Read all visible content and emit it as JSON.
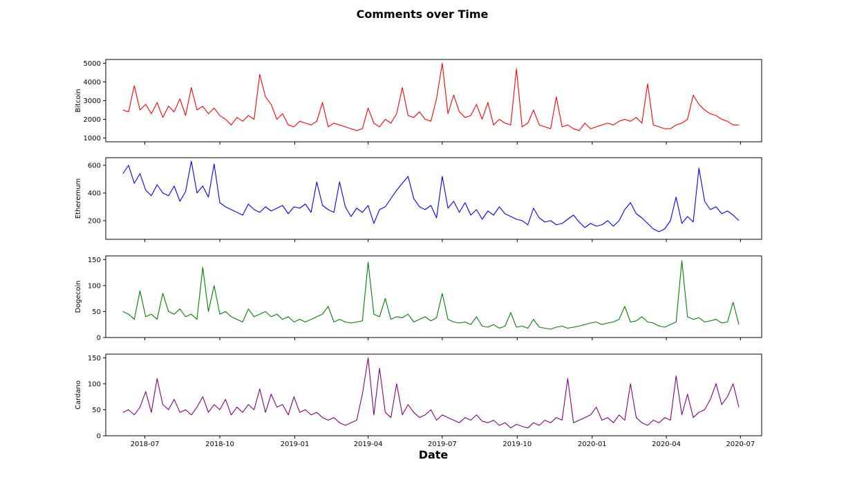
{
  "chart_data": {
    "type": "line",
    "title": "Comments over Time",
    "xlabel": "Date",
    "x_range": [
      "2018-05-14",
      "2020-07-27"
    ],
    "x_ticks": [
      "2018-07",
      "2018-10",
      "2019-01",
      "2019-04",
      "2019-07",
      "2019-10",
      "2020-01",
      "2020-04",
      "2020-07"
    ],
    "sampling": "one point per week from 2018-06-04 to 2020-06-29 (curves are denser daily lines in the original)",
    "grid": false,
    "panels": [
      {
        "ylabel": "Bitcoin",
        "color": "#ff0000",
        "ylim": [
          800,
          5200
        ],
        "yticks": [
          1000,
          2000,
          3000,
          4000,
          5000
        ],
        "x": [
          "2018-06-04",
          "2018-06-11",
          "2018-06-18",
          "2018-06-25",
          "2018-07-02",
          "2018-07-09",
          "2018-07-16",
          "2018-07-23",
          "2018-07-30",
          "2018-08-06",
          "2018-08-13",
          "2018-08-20",
          "2018-08-27",
          "2018-09-03",
          "2018-09-10",
          "2018-09-17",
          "2018-09-24",
          "2018-10-01",
          "2018-10-08",
          "2018-10-15",
          "2018-10-22",
          "2018-10-29",
          "2018-11-05",
          "2018-11-12",
          "2018-11-19",
          "2018-11-26",
          "2018-12-03",
          "2018-12-10",
          "2018-12-17",
          "2018-12-24",
          "2018-12-31",
          "2019-01-07",
          "2019-01-14",
          "2019-01-21",
          "2019-01-28",
          "2019-02-04",
          "2019-02-11",
          "2019-02-18",
          "2019-02-25",
          "2019-03-04",
          "2019-03-11",
          "2019-03-18",
          "2019-03-25",
          "2019-04-01",
          "2019-04-08",
          "2019-04-15",
          "2019-04-22",
          "2019-04-29",
          "2019-05-06",
          "2019-05-13",
          "2019-05-20",
          "2019-05-27",
          "2019-06-03",
          "2019-06-10",
          "2019-06-17",
          "2019-06-24",
          "2019-07-01",
          "2019-07-08",
          "2019-07-15",
          "2019-07-22",
          "2019-07-29",
          "2019-08-05",
          "2019-08-12",
          "2019-08-19",
          "2019-08-26",
          "2019-09-02",
          "2019-09-09",
          "2019-09-16",
          "2019-09-23",
          "2019-09-30",
          "2019-10-07",
          "2019-10-14",
          "2019-10-21",
          "2019-10-28",
          "2019-11-04",
          "2019-11-11",
          "2019-11-18",
          "2019-11-25",
          "2019-12-02",
          "2019-12-09",
          "2019-12-16",
          "2019-12-23",
          "2019-12-30",
          "2020-01-06",
          "2020-01-13",
          "2020-01-20",
          "2020-01-27",
          "2020-02-03",
          "2020-02-10",
          "2020-02-17",
          "2020-02-24",
          "2020-03-02",
          "2020-03-09",
          "2020-03-16",
          "2020-03-23",
          "2020-03-30",
          "2020-04-06",
          "2020-04-13",
          "2020-04-20",
          "2020-04-27",
          "2020-05-04",
          "2020-05-11",
          "2020-05-18",
          "2020-05-25",
          "2020-06-01",
          "2020-06-08",
          "2020-06-15",
          "2020-06-22",
          "2020-06-29"
        ],
        "values": [
          2500,
          2400,
          3800,
          2500,
          2800,
          2300,
          2900,
          2100,
          2700,
          2400,
          3100,
          2200,
          3700,
          2500,
          2700,
          2300,
          2600,
          2200,
          2000,
          1700,
          2100,
          1900,
          2200,
          2000,
          4400,
          3200,
          2800,
          2000,
          2300,
          1700,
          1600,
          1900,
          1800,
          1700,
          1900,
          2900,
          1600,
          1800,
          1700,
          1600,
          1500,
          1400,
          1500,
          2600,
          1800,
          1600,
          2000,
          1800,
          2300,
          3700,
          2200,
          2100,
          2400,
          2000,
          1900,
          3100,
          5000,
          2300,
          3300,
          2400,
          2100,
          2200,
          2800,
          2000,
          2900,
          1700,
          2000,
          1800,
          1700,
          4700,
          1600,
          1800,
          2500,
          1700,
          1600,
          1500,
          3200,
          1600,
          1700,
          1500,
          1400,
          1800,
          1500,
          1600,
          1700,
          1800,
          1700,
          1900,
          2000,
          1900,
          2100,
          1800,
          3900,
          1700,
          1600,
          1500,
          1500,
          1700,
          1800,
          2000,
          3300,
          2800,
          2500,
          2300,
          2200,
          2000,
          1900,
          1700,
          1700
        ]
      },
      {
        "ylabel": "Etheremum",
        "color": "#0000ff",
        "ylim": [
          65,
          655
        ],
        "yticks": [
          200,
          400,
          600
        ],
        "x": [
          "2018-06-04",
          "2018-06-11",
          "2018-06-18",
          "2018-06-25",
          "2018-07-02",
          "2018-07-09",
          "2018-07-16",
          "2018-07-23",
          "2018-07-30",
          "2018-08-06",
          "2018-08-13",
          "2018-08-20",
          "2018-08-27",
          "2018-09-03",
          "2018-09-10",
          "2018-09-17",
          "2018-09-24",
          "2018-10-01",
          "2018-10-08",
          "2018-10-15",
          "2018-10-22",
          "2018-10-29",
          "2018-11-05",
          "2018-11-12",
          "2018-11-19",
          "2018-11-26",
          "2018-12-03",
          "2018-12-10",
          "2018-12-17",
          "2018-12-24",
          "2018-12-31",
          "2019-01-07",
          "2019-01-14",
          "2019-01-21",
          "2019-01-28",
          "2019-02-04",
          "2019-02-11",
          "2019-02-18",
          "2019-02-25",
          "2019-03-04",
          "2019-03-11",
          "2019-03-18",
          "2019-03-25",
          "2019-04-01",
          "2019-04-08",
          "2019-04-15",
          "2019-04-22",
          "2019-04-29",
          "2019-05-06",
          "2019-05-13",
          "2019-05-20",
          "2019-05-27",
          "2019-06-03",
          "2019-06-10",
          "2019-06-17",
          "2019-06-24",
          "2019-07-01",
          "2019-07-08",
          "2019-07-15",
          "2019-07-22",
          "2019-07-29",
          "2019-08-05",
          "2019-08-12",
          "2019-08-19",
          "2019-08-26",
          "2019-09-02",
          "2019-09-09",
          "2019-09-16",
          "2019-09-23",
          "2019-09-30",
          "2019-10-07",
          "2019-10-14",
          "2019-10-21",
          "2019-10-28",
          "2019-11-04",
          "2019-11-11",
          "2019-11-18",
          "2019-11-25",
          "2019-12-02",
          "2019-12-09",
          "2019-12-16",
          "2019-12-23",
          "2019-12-30",
          "2020-01-06",
          "2020-01-13",
          "2020-01-20",
          "2020-01-27",
          "2020-02-03",
          "2020-02-10",
          "2020-02-17",
          "2020-02-24",
          "2020-03-02",
          "2020-03-09",
          "2020-03-16",
          "2020-03-23",
          "2020-03-30",
          "2020-04-06",
          "2020-04-13",
          "2020-04-20",
          "2020-04-27",
          "2020-05-04",
          "2020-05-11",
          "2020-05-18",
          "2020-05-25",
          "2020-06-01",
          "2020-06-08",
          "2020-06-15",
          "2020-06-22",
          "2020-06-29"
        ],
        "values": [
          540,
          600,
          470,
          540,
          420,
          380,
          460,
          400,
          380,
          450,
          340,
          410,
          630,
          400,
          450,
          370,
          610,
          330,
          300,
          280,
          260,
          240,
          320,
          280,
          260,
          300,
          270,
          290,
          310,
          250,
          300,
          290,
          320,
          260,
          480,
          310,
          280,
          260,
          480,
          300,
          230,
          290,
          260,
          310,
          180,
          280,
          300,
          360,
          420,
          470,
          520,
          360,
          300,
          280,
          310,
          220,
          520,
          290,
          340,
          260,
          330,
          240,
          280,
          210,
          270,
          240,
          300,
          250,
          230,
          210,
          200,
          170,
          290,
          220,
          190,
          200,
          170,
          180,
          210,
          240,
          190,
          150,
          180,
          160,
          170,
          200,
          160,
          200,
          280,
          330,
          250,
          220,
          180,
          140,
          120,
          140,
          200,
          370,
          180,
          230,
          190,
          580,
          340,
          280,
          300,
          250,
          270,
          240,
          200
        ]
      },
      {
        "ylabel": "Dogecoin",
        "color": "#008000",
        "ylim": [
          0,
          157
        ],
        "yticks": [
          0,
          50,
          100,
          150
        ],
        "x": [
          "2018-06-04",
          "2018-06-11",
          "2018-06-18",
          "2018-06-25",
          "2018-07-02",
          "2018-07-09",
          "2018-07-16",
          "2018-07-23",
          "2018-07-30",
          "2018-08-06",
          "2018-08-13",
          "2018-08-20",
          "2018-08-27",
          "2018-09-03",
          "2018-09-10",
          "2018-09-17",
          "2018-09-24",
          "2018-10-01",
          "2018-10-08",
          "2018-10-15",
          "2018-10-22",
          "2018-10-29",
          "2018-11-05",
          "2018-11-12",
          "2018-11-19",
          "2018-11-26",
          "2018-12-03",
          "2018-12-10",
          "2018-12-17",
          "2018-12-24",
          "2018-12-31",
          "2019-01-07",
          "2019-01-14",
          "2019-01-21",
          "2019-01-28",
          "2019-02-04",
          "2019-02-11",
          "2019-02-18",
          "2019-02-25",
          "2019-03-04",
          "2019-03-11",
          "2019-03-18",
          "2019-03-25",
          "2019-04-01",
          "2019-04-08",
          "2019-04-15",
          "2019-04-22",
          "2019-04-29",
          "2019-05-06",
          "2019-05-13",
          "2019-05-20",
          "2019-05-27",
          "2019-06-03",
          "2019-06-10",
          "2019-06-17",
          "2019-06-24",
          "2019-07-01",
          "2019-07-08",
          "2019-07-15",
          "2019-07-22",
          "2019-07-29",
          "2019-08-05",
          "2019-08-12",
          "2019-08-19",
          "2019-08-26",
          "2019-09-02",
          "2019-09-09",
          "2019-09-16",
          "2019-09-23",
          "2019-09-30",
          "2019-10-07",
          "2019-10-14",
          "2019-10-21",
          "2019-10-28",
          "2019-11-04",
          "2019-11-11",
          "2019-11-18",
          "2019-11-25",
          "2019-12-02",
          "2019-12-09",
          "2019-12-16",
          "2019-12-23",
          "2019-12-30",
          "2020-01-06",
          "2020-01-13",
          "2020-01-20",
          "2020-01-27",
          "2020-02-03",
          "2020-02-10",
          "2020-02-17",
          "2020-02-24",
          "2020-03-02",
          "2020-03-09",
          "2020-03-16",
          "2020-03-23",
          "2020-03-30",
          "2020-04-06",
          "2020-04-13",
          "2020-04-20",
          "2020-04-27",
          "2020-05-04",
          "2020-05-11",
          "2020-05-18",
          "2020-05-25",
          "2020-06-01",
          "2020-06-08",
          "2020-06-15",
          "2020-06-22",
          "2020-06-29"
        ],
        "values": [
          50,
          45,
          35,
          90,
          40,
          45,
          35,
          85,
          50,
          45,
          55,
          40,
          45,
          35,
          135,
          50,
          100,
          45,
          50,
          40,
          35,
          30,
          55,
          40,
          45,
          50,
          40,
          45,
          35,
          40,
          30,
          35,
          30,
          35,
          40,
          45,
          60,
          30,
          35,
          30,
          28,
          30,
          32,
          145,
          45,
          40,
          75,
          35,
          40,
          38,
          45,
          30,
          35,
          40,
          32,
          38,
          85,
          35,
          30,
          28,
          30,
          25,
          40,
          22,
          20,
          25,
          18,
          22,
          48,
          20,
          22,
          18,
          35,
          20,
          18,
          16,
          20,
          22,
          18,
          20,
          22,
          25,
          28,
          30,
          25,
          28,
          30,
          35,
          60,
          30,
          32,
          40,
          30,
          28,
          22,
          20,
          25,
          30,
          148,
          40,
          35,
          38,
          30,
          32,
          35,
          28,
          30,
          68,
          25
        ]
      },
      {
        "ylabel": "Cardano",
        "color": "#800080",
        "ylim": [
          0,
          157
        ],
        "yticks": [
          0,
          50,
          100,
          150
        ],
        "x": [
          "2018-06-04",
          "2018-06-11",
          "2018-06-18",
          "2018-06-25",
          "2018-07-02",
          "2018-07-09",
          "2018-07-16",
          "2018-07-23",
          "2018-07-30",
          "2018-08-06",
          "2018-08-13",
          "2018-08-20",
          "2018-08-27",
          "2018-09-03",
          "2018-09-10",
          "2018-09-17",
          "2018-09-24",
          "2018-10-01",
          "2018-10-08",
          "2018-10-15",
          "2018-10-22",
          "2018-10-29",
          "2018-11-05",
          "2018-11-12",
          "2018-11-19",
          "2018-11-26",
          "2018-12-03",
          "2018-12-10",
          "2018-12-17",
          "2018-12-24",
          "2018-12-31",
          "2019-01-07",
          "2019-01-14",
          "2019-01-21",
          "2019-01-28",
          "2019-02-04",
          "2019-02-11",
          "2019-02-18",
          "2019-02-25",
          "2019-03-04",
          "2019-03-11",
          "2019-03-18",
          "2019-03-25",
          "2019-04-01",
          "2019-04-08",
          "2019-04-15",
          "2019-04-22",
          "2019-04-29",
          "2019-05-06",
          "2019-05-13",
          "2019-05-20",
          "2019-05-27",
          "2019-06-03",
          "2019-06-10",
          "2019-06-17",
          "2019-06-24",
          "2019-07-01",
          "2019-07-08",
          "2019-07-15",
          "2019-07-22",
          "2019-07-29",
          "2019-08-05",
          "2019-08-12",
          "2019-08-19",
          "2019-08-26",
          "2019-09-02",
          "2019-09-09",
          "2019-09-16",
          "2019-09-23",
          "2019-09-30",
          "2019-10-07",
          "2019-10-14",
          "2019-10-21",
          "2019-10-28",
          "2019-11-04",
          "2019-11-11",
          "2019-11-18",
          "2019-11-25",
          "2019-12-02",
          "2019-12-09",
          "2019-12-16",
          "2019-12-23",
          "2019-12-30",
          "2020-01-06",
          "2020-01-13",
          "2020-01-20",
          "2020-01-27",
          "2020-02-03",
          "2020-02-10",
          "2020-02-17",
          "2020-02-24",
          "2020-03-02",
          "2020-03-09",
          "2020-03-16",
          "2020-03-23",
          "2020-03-30",
          "2020-04-06",
          "2020-04-13",
          "2020-04-20",
          "2020-04-27",
          "2020-05-04",
          "2020-05-11",
          "2020-05-18",
          "2020-05-25",
          "2020-06-01",
          "2020-06-08",
          "2020-06-15",
          "2020-06-22",
          "2020-06-29"
        ],
        "values": [
          45,
          50,
          40,
          55,
          85,
          45,
          110,
          60,
          50,
          70,
          45,
          50,
          40,
          55,
          75,
          45,
          60,
          50,
          70,
          40,
          55,
          45,
          60,
          50,
          90,
          45,
          80,
          55,
          60,
          40,
          75,
          45,
          50,
          40,
          45,
          35,
          30,
          35,
          25,
          20,
          25,
          30,
          80,
          150,
          40,
          130,
          45,
          35,
          100,
          40,
          60,
          45,
          35,
          40,
          50,
          30,
          40,
          35,
          30,
          25,
          35,
          30,
          40,
          28,
          25,
          30,
          20,
          25,
          15,
          22,
          18,
          15,
          25,
          20,
          30,
          25,
          35,
          30,
          110,
          25,
          30,
          35,
          40,
          55,
          30,
          35,
          25,
          40,
          30,
          100,
          35,
          25,
          20,
          30,
          25,
          35,
          30,
          115,
          40,
          80,
          35,
          45,
          50,
          70,
          100,
          60,
          75,
          100,
          55
        ]
      }
    ]
  }
}
